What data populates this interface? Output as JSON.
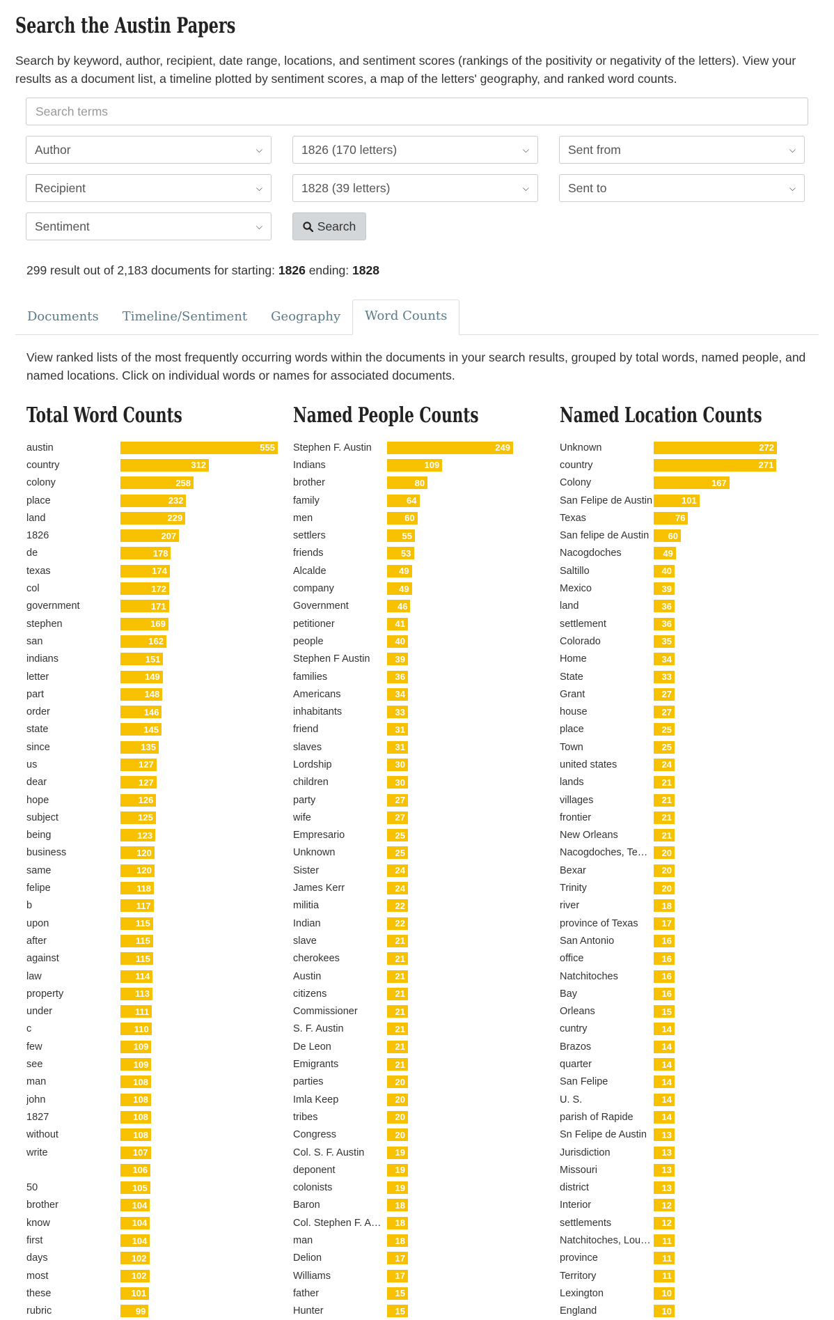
{
  "page": {
    "title": "Search the Austin Papers",
    "intro": "Search by keyword, author, recipient, date range, locations, and sentiment scores (rankings of the positivity or negativity of the letters). View your results as a document list, a timeline plotted by sentiment scores, a map of the letters' geography, and ranked word counts."
  },
  "form": {
    "search_placeholder": "Search terms",
    "author": "Author",
    "start_year": "1826 (170 letters)",
    "sent_from": "Sent from",
    "recipient": "Recipient",
    "end_year": "1828 (39 letters)",
    "sent_to": "Sent to",
    "sentiment": "Sentiment",
    "search_button": "Search"
  },
  "results": {
    "summary": "299 result out of 2,183 documents for starting:",
    "start": "1826",
    "ending_label": "ending:",
    "end": "1828"
  },
  "tabs": {
    "documents": "Documents",
    "timeline": "Timeline/Sentiment",
    "geography": "Geography",
    "word_counts": "Word Counts"
  },
  "word_counts_description": "View ranked lists of the most frequently occurring words within the documents in your search results, grouped by total words, named people, and named locations. Click on individual words or names for associated documents.",
  "colors": {
    "bar": "#f7c100",
    "bar_text": "#ffffff"
  },
  "chart_data": [
    {
      "type": "bar",
      "orientation": "horizontal",
      "title": "Total Word Counts",
      "categories": [
        "austin",
        "country",
        "colony",
        "place",
        "land",
        "1826",
        "de",
        "texas",
        "col",
        "government",
        "stephen",
        "san",
        "indians",
        "letter",
        "part",
        "order",
        "state",
        "since",
        "us",
        "dear",
        "hope",
        "subject",
        "being",
        "business",
        "same",
        "felipe",
        "b",
        "upon",
        "after",
        "against",
        "law",
        "property",
        "under",
        "c",
        "few",
        "see",
        "man",
        "john",
        "1827",
        "without",
        "write",
        "",
        "50",
        "brother",
        "know",
        "first",
        "days",
        "most",
        "these",
        "rubric"
      ],
      "values": [
        555,
        312,
        258,
        232,
        229,
        207,
        178,
        174,
        172,
        171,
        169,
        162,
        151,
        149,
        148,
        146,
        145,
        135,
        127,
        127,
        126,
        125,
        123,
        120,
        120,
        118,
        117,
        115,
        115,
        115,
        114,
        113,
        111,
        110,
        109,
        109,
        108,
        108,
        108,
        108,
        107,
        106,
        105,
        104,
        104,
        104,
        102,
        102,
        101,
        99
      ]
    },
    {
      "type": "bar",
      "orientation": "horizontal",
      "title": "Named People Counts",
      "categories": [
        "Stephen F. Austin",
        "Indians",
        "brother",
        "family",
        "men",
        "settlers",
        "friends",
        "Alcalde",
        "company",
        "Government",
        "petitioner",
        "people",
        "Stephen F Austin",
        "families",
        "Americans",
        "inhabitants",
        "friend",
        "slaves",
        "Lordship",
        "children",
        "party",
        "wife",
        "Empresario",
        "Unknown",
        "Sister",
        "James Kerr",
        "militia",
        "Indian",
        "slave",
        "cherokees",
        "Austin",
        "citizens",
        "Commissioner",
        "S. F. Austin",
        "De Leon",
        "Emigrants",
        "parties",
        "Imla Keep",
        "tribes",
        "Congress",
        "Col. S. F. Austin",
        "deponent",
        "colonists",
        "Baron",
        "Col. Stephen F. Austin",
        "man",
        "Delion",
        "Williams",
        "father",
        "Hunter"
      ],
      "values": [
        249,
        109,
        80,
        64,
        60,
        55,
        53,
        49,
        49,
        46,
        41,
        40,
        39,
        36,
        34,
        33,
        31,
        31,
        30,
        30,
        27,
        27,
        25,
        25,
        24,
        24,
        22,
        22,
        21,
        21,
        21,
        21,
        21,
        21,
        21,
        21,
        20,
        20,
        20,
        20,
        19,
        19,
        19,
        18,
        18,
        18,
        17,
        17,
        15,
        15
      ]
    },
    {
      "type": "bar",
      "orientation": "horizontal",
      "title": "Named Location Counts",
      "categories": [
        "Unknown",
        "country",
        "Colony",
        "San Felipe de Austin",
        "Texas",
        "San felipe de Austin",
        "Nacogdoches",
        "Saltillo",
        "Mexico",
        "land",
        "settlement",
        "Colorado",
        "Home",
        "State",
        "Grant",
        "house",
        "place",
        "Town",
        "united states",
        "lands",
        "villages",
        "frontier",
        "New Orleans",
        "Nacogdoches, Texas",
        "Bexar",
        "Trinity",
        "river",
        "province of Texas",
        "San Antonio",
        "office",
        "Natchitoches",
        "Bay",
        "Orleans",
        "cuntry",
        "Brazos",
        "quarter",
        "San Felipe",
        "U. S.",
        "parish of Rapide",
        "Sn Felipe de Austin",
        "Jurisdiction",
        "Missouri",
        "district",
        "Interior",
        "settlements",
        "Natchitoches, Louisiana",
        "province",
        "Territory",
        "Lexington",
        "England"
      ],
      "values": [
        272,
        271,
        167,
        101,
        76,
        60,
        49,
        40,
        39,
        36,
        36,
        35,
        34,
        33,
        27,
        27,
        25,
        25,
        24,
        21,
        21,
        21,
        21,
        20,
        20,
        20,
        18,
        17,
        16,
        16,
        16,
        16,
        15,
        14,
        14,
        14,
        14,
        14,
        14,
        13,
        13,
        13,
        13,
        12,
        12,
        11,
        11,
        11,
        10,
        10
      ]
    }
  ]
}
